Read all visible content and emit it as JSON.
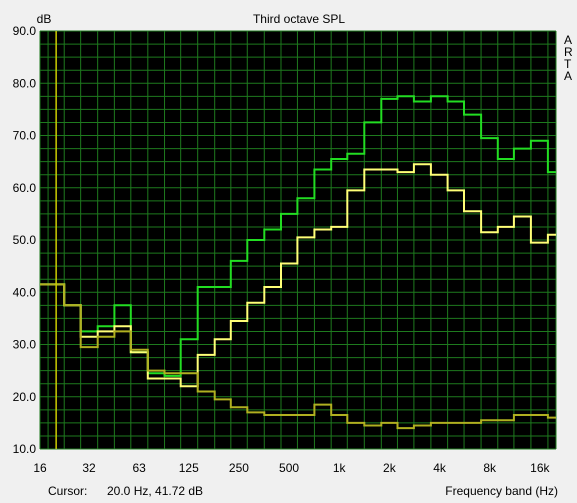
{
  "chart_data": {
    "type": "line",
    "title": "Third octave SPL",
    "ylabel": "dB",
    "xlabel": "Frequency band (Hz)",
    "ylim": [
      10,
      90
    ],
    "xlim": [
      16,
      20000
    ],
    "x_scale": "log",
    "grid": true,
    "y_ticks": [
      "10.0",
      "20.0",
      "30.0",
      "40.0",
      "50.0",
      "60.0",
      "70.0",
      "80.0",
      "90.0"
    ],
    "x_tick_labels": [
      "16",
      "32",
      "63",
      "125",
      "250",
      "500",
      "1k",
      "2k",
      "4k",
      "8k",
      "16k"
    ],
    "x_tick_values": [
      16,
      31.5,
      63,
      125,
      250,
      500,
      1000,
      2000,
      4000,
      8000,
      16000
    ],
    "bands": [
      16,
      20,
      25,
      31.5,
      40,
      50,
      63,
      80,
      100,
      125,
      160,
      200,
      250,
      315,
      400,
      500,
      630,
      800,
      1000,
      1250,
      1600,
      2000,
      2500,
      3150,
      4000,
      5000,
      6300,
      8000,
      10000,
      12500,
      16000,
      20000
    ],
    "series": [
      {
        "color": "#22dd22",
        "values": [
          41.5,
          41.5,
          37.5,
          32.5,
          33.5,
          37.5,
          28.5,
          24.5,
          24,
          31,
          41,
          41,
          46,
          50,
          52,
          55,
          58,
          63.5,
          65.5,
          66.5,
          72.5,
          77,
          77.5,
          76.5,
          77.5,
          76.5,
          74,
          69.5,
          65.5,
          67.5,
          69,
          63
        ]
      },
      {
        "color": "#ffff77",
        "values": [
          41.5,
          41.5,
          37.5,
          31.5,
          32.5,
          33.5,
          28.5,
          23.5,
          23.5,
          22,
          28,
          31,
          34.5,
          38,
          41,
          45.5,
          50.5,
          52,
          52.5,
          59.5,
          63.5,
          63.5,
          63,
          64.5,
          62.5,
          59.5,
          55.5,
          51.5,
          52.5,
          54.5,
          49.5,
          51
        ]
      },
      {
        "color": "#b0b020",
        "values": [
          41.5,
          41.5,
          37.5,
          29.5,
          31.5,
          32.5,
          29,
          25,
          24.5,
          24.5,
          21,
          19.5,
          18,
          17,
          16.5,
          16.5,
          16.5,
          18.5,
          16.5,
          15,
          14.5,
          15,
          14,
          14.5,
          15,
          15,
          15,
          15.5,
          15.5,
          16.5,
          16.5,
          16
        ]
      }
    ],
    "cursor": {
      "x": 20.0,
      "y": 41.72
    }
  },
  "colors": {
    "plot_background": "#000000",
    "grid": "#1e7a1e",
    "cursor_line": "#cccc00",
    "window_background": "#f0f0f0"
  },
  "status": {
    "cursor_label": "Cursor:",
    "cursor_value": "20.0 Hz, 41.72 dB",
    "x_axis_title": "Frequency band (Hz)"
  },
  "side_label": [
    "A",
    "R",
    "T",
    "A"
  ]
}
